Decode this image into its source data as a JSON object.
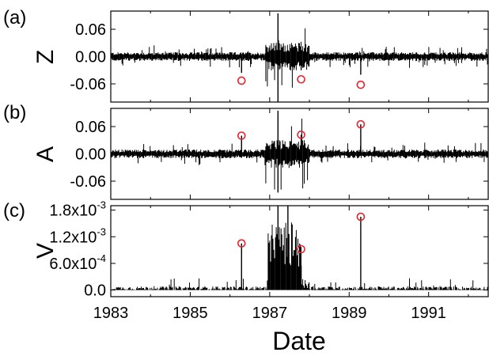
{
  "chart_data": [
    {
      "type": "line",
      "panel_label": "(a)",
      "ylabel": "Z",
      "xlim": [
        "1983",
        "1992.5"
      ],
      "ylim": [
        -0.1,
        0.1
      ],
      "y_ticks": [
        {
          "value": 0.06,
          "label": "0.06"
        },
        {
          "value": 0.0,
          "label": "0.00"
        },
        {
          "value": -0.06,
          "label": "-0.06"
        }
      ],
      "noise_amplitude": 0.008,
      "spikes": [
        {
          "x": "1986-04",
          "y": -0.036
        },
        {
          "x": "1987-03",
          "y": 0.095
        },
        {
          "x": "1987-03",
          "y": -0.1
        },
        {
          "x": "1987-10",
          "y": -0.03
        },
        {
          "x": "1989-04",
          "y": -0.04
        }
      ],
      "highlighted_points": [
        {
          "x": "1986-04",
          "y": -0.053
        },
        {
          "x": "1987-10",
          "y": -0.05
        },
        {
          "x": "1989-04",
          "y": -0.062
        }
      ]
    },
    {
      "type": "line",
      "panel_label": "(b)",
      "ylabel": "A",
      "xlim": [
        "1983",
        "1992.5"
      ],
      "ylim": [
        -0.1,
        0.1
      ],
      "y_ticks": [
        {
          "value": 0.06,
          "label": "0.06"
        },
        {
          "value": 0.0,
          "label": "0.00"
        },
        {
          "value": -0.06,
          "label": "-0.06"
        }
      ],
      "noise_amplitude": 0.008,
      "spikes": [
        {
          "x": "1986-04",
          "y": 0.04
        },
        {
          "x": "1987-03",
          "y": 0.095
        },
        {
          "x": "1987-03",
          "y": -0.085
        },
        {
          "x": "1987-10",
          "y": 0.042
        },
        {
          "x": "1989-04",
          "y": 0.065
        }
      ],
      "highlighted_points": [
        {
          "x": "1986-04",
          "y": 0.04
        },
        {
          "x": "1987-10",
          "y": 0.042
        },
        {
          "x": "1989-04",
          "y": 0.065
        }
      ]
    },
    {
      "type": "line",
      "panel_label": "(c)",
      "ylabel": "V",
      "xlabel": "Date",
      "xlim": [
        "1983",
        "1992.5"
      ],
      "ylim": [
        -0.00015,
        0.0019
      ],
      "y_ticks": [
        {
          "value": 0.0018,
          "base": "1.8x10",
          "exp": "-3"
        },
        {
          "value": 0.0012,
          "base": "1.2x10",
          "exp": "-3"
        },
        {
          "value": 0.0006,
          "base": "6.0x10",
          "exp": "-4"
        },
        {
          "value": 0.0,
          "base": "0.0",
          "exp": ""
        }
      ],
      "x_ticks": [
        {
          "value": "1983",
          "label": "1983"
        },
        {
          "value": "1985",
          "label": "1985"
        },
        {
          "value": "1987",
          "label": "1987"
        },
        {
          "value": "1989",
          "label": "1989"
        },
        {
          "value": "1991",
          "label": "1991"
        }
      ],
      "noise_amplitude": 8e-05,
      "spikes": [
        {
          "x": "1986-04",
          "y": 0.00105
        },
        {
          "x": "1987-03",
          "y": 0.0019
        },
        {
          "x": "1987-06",
          "y": 0.0019
        },
        {
          "x": "1987-10",
          "y": 0.00055
        },
        {
          "x": "1989-04",
          "y": 0.00165
        }
      ],
      "highlighted_points": [
        {
          "x": "1986-04",
          "y": 0.00105
        },
        {
          "x": "1987-10",
          "y": 0.00092
        },
        {
          "x": "1989-04",
          "y": 0.00165
        }
      ]
    }
  ],
  "colors": {
    "signal": "#000000",
    "marker": "#e8222c",
    "frame": "#000000"
  }
}
